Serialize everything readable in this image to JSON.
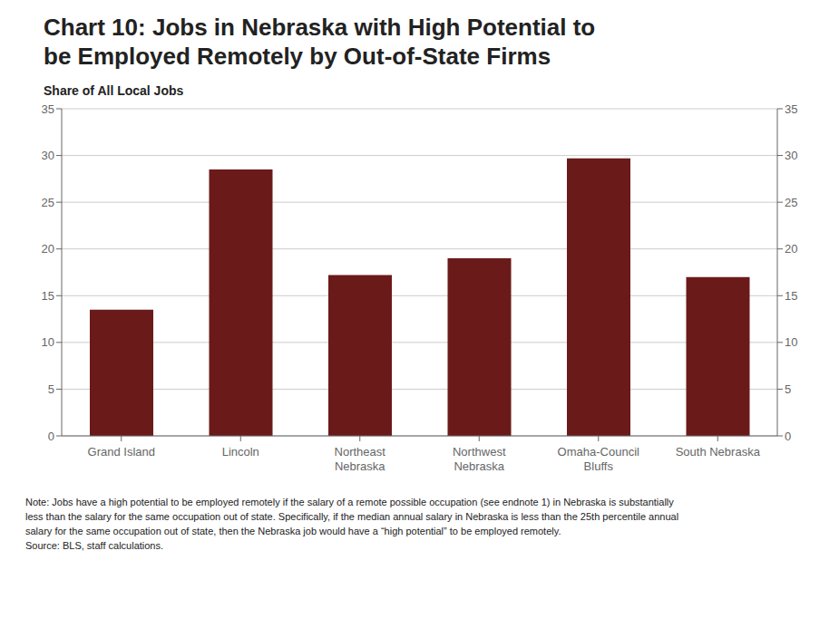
{
  "chart_data": {
    "type": "bar",
    "title": "Chart 10: Jobs in Nebraska with High Potential to\nbe Employed Remotely by Out-of-State Firms",
    "ylabel": "Share of All Local Jobs",
    "categories": [
      "Grand Island",
      "Lincoln",
      "Northeast\nNebraska",
      "Northwest\nNebraska",
      "Omaha-Council\nBluffs",
      "South Nebraska"
    ],
    "values": [
      13.5,
      28.5,
      17.2,
      19.0,
      29.7,
      17.0
    ],
    "color": "#6B1A1A",
    "ylim": [
      0,
      35
    ],
    "yticks": [
      0,
      5,
      10,
      15,
      20,
      25,
      30,
      35
    ],
    "y2lim": [
      0,
      35
    ],
    "y2ticks": [
      0,
      5,
      10,
      15,
      20,
      25,
      30,
      35
    ],
    "grid": true,
    "note": "Note: Jobs have a high potential to be employed remotely if the salary of a remote possible occupation (see endnote 1) in Nebraska is substantially\nless than the salary for the same occupation out of state. Specifically, if the median annual salary in Nebraska is less than the 25th percentile annual\nsalary for the same occupation out of state, then the Nebraska job would have a “high potential” to be employed remotely.\nSource: BLS, staff calculations."
  }
}
